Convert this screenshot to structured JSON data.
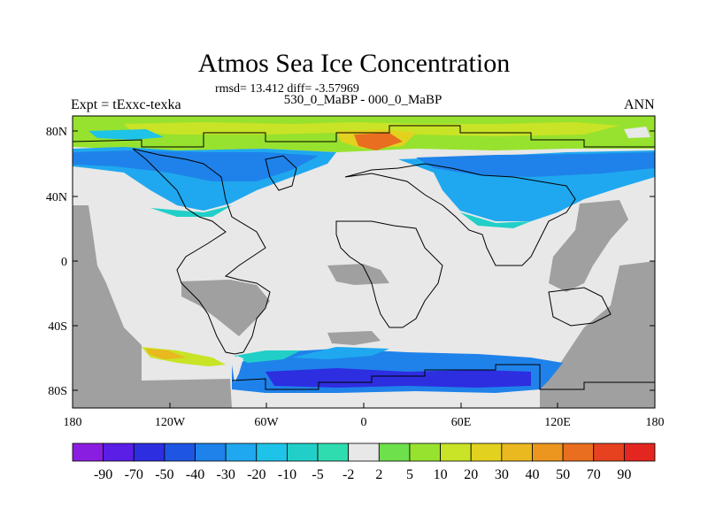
{
  "title": "Atmos Sea Ice Concentration",
  "stats": "rmsd= 13.412 diff= -3.57969",
  "experiment": "Expt = tExxc-texka",
  "subtitle": "530_0_MaBP - 000_0_MaBP",
  "season": "ANN",
  "x_labels": [
    "180",
    "120W",
    "60W",
    "0",
    "60E",
    "120E",
    "180"
  ],
  "y_labels": [
    "80N",
    "40N",
    "0",
    "40S",
    "80S"
  ],
  "colorbar": {
    "labels": [
      "-90",
      "-70",
      "-50",
      "-40",
      "-30",
      "-20",
      "-10",
      "-5",
      "-2",
      "2",
      "5",
      "10",
      "20",
      "30",
      "40",
      "50",
      "70",
      "90"
    ],
    "colors": [
      "#8a1ee0",
      "#5a1ee6",
      "#2d2ee0",
      "#1f55e3",
      "#1f82ea",
      "#1fa8ef",
      "#1fc3e8",
      "#21cfc8",
      "#2fdcb0",
      "#e8e8e8",
      "#6ee04c",
      "#97e22e",
      "#c9e326",
      "#e2d21f",
      "#eab81f",
      "#ec961f",
      "#ea6e1f",
      "#e6421f",
      "#e3261f"
    ]
  },
  "colors": {
    "land": "#a0a0a0",
    "ocean_zero": "#e8e8e8"
  }
}
